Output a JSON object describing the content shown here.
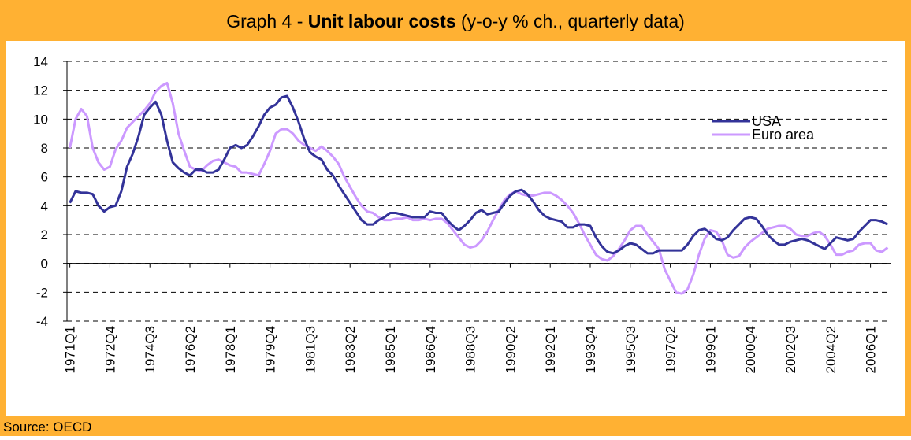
{
  "chart_data": {
    "type": "line",
    "title": {
      "lead": "Graph 4 - ",
      "bold": "Unit labour costs",
      "rest": " (y-o-y % ch., quarterly data)"
    },
    "source": "Source: OECD",
    "categories": [
      "1971Q1",
      null,
      null,
      null,
      null,
      null,
      null,
      "1972Q4",
      null,
      null,
      null,
      null,
      null,
      null,
      "1974Q3",
      null,
      null,
      null,
      null,
      null,
      null,
      "1976Q2",
      null,
      null,
      null,
      null,
      null,
      null,
      "1978Q1",
      null,
      null,
      null,
      null,
      null,
      null,
      "1979Q4",
      null,
      null,
      null,
      null,
      null,
      null,
      "1981Q3",
      null,
      null,
      null,
      null,
      null,
      null,
      "1983Q2",
      null,
      null,
      null,
      null,
      null,
      null,
      "1985Q1",
      null,
      null,
      null,
      null,
      null,
      null,
      "1986Q4",
      null,
      null,
      null,
      null,
      null,
      null,
      "1988Q3",
      null,
      null,
      null,
      null,
      null,
      null,
      "1990Q2",
      null,
      null,
      null,
      null,
      null,
      null,
      "1992Q1",
      null,
      null,
      null,
      null,
      null,
      null,
      "1993Q4",
      null,
      null,
      null,
      null,
      null,
      null,
      "1995Q3",
      null,
      null,
      null,
      null,
      null,
      null,
      "1997Q2",
      null,
      null,
      null,
      null,
      null,
      null,
      "1999Q1",
      null,
      null,
      null,
      null,
      null,
      null,
      "2000Q4",
      null,
      null,
      null,
      null,
      null,
      null,
      "2002Q3",
      null,
      null,
      null,
      null,
      null,
      null,
      "2004Q2",
      null,
      null,
      null,
      null,
      null,
      null,
      "2006Q1",
      null,
      null,
      null
    ],
    "series": [
      {
        "name": "USA",
        "color": "#333399",
        "values": [
          4.2,
          5.0,
          4.9,
          4.9,
          4.8,
          4.0,
          3.6,
          3.9,
          4.0,
          5.0,
          6.7,
          7.6,
          8.8,
          10.3,
          10.8,
          11.2,
          10.3,
          8.5,
          7.0,
          6.6,
          6.3,
          6.1,
          6.5,
          6.5,
          6.3,
          6.3,
          6.5,
          7.2,
          8.0,
          8.2,
          8.0,
          8.2,
          8.8,
          9.5,
          10.3,
          10.8,
          11.0,
          11.5,
          11.6,
          10.8,
          9.8,
          8.6,
          7.7,
          7.4,
          7.2,
          6.5,
          6.1,
          5.4,
          4.8,
          4.2,
          3.6,
          3.0,
          2.7,
          2.7,
          3.0,
          3.2,
          3.5,
          3.5,
          3.4,
          3.3,
          3.2,
          3.2,
          3.2,
          3.6,
          3.5,
          3.5,
          3.0,
          2.6,
          2.3,
          2.6,
          3.0,
          3.5,
          3.7,
          3.4,
          3.5,
          3.6,
          4.2,
          4.7,
          5.0,
          5.1,
          4.8,
          4.3,
          3.7,
          3.3,
          3.1,
          3.0,
          2.9,
          2.5,
          2.5,
          2.7,
          2.7,
          2.6,
          1.8,
          1.2,
          0.8,
          0.7,
          0.9,
          1.2,
          1.4,
          1.3,
          1.0,
          0.7,
          0.7,
          0.9,
          0.9,
          0.9,
          0.9,
          0.9,
          1.3,
          1.9,
          2.3,
          2.4,
          2.1,
          1.7,
          1.6,
          1.8,
          2.3,
          2.7,
          3.1,
          3.2,
          3.1,
          2.6,
          2.0,
          1.6,
          1.3,
          1.3,
          1.5,
          1.6,
          1.7,
          1.6,
          1.4,
          1.2,
          1.0,
          1.4,
          1.8,
          1.7,
          1.6,
          1.7,
          2.2,
          2.6,
          3.0,
          3.0,
          2.9,
          2.7
        ]
      },
      {
        "name": "Euro area",
        "color": "#cc99ff",
        "values": [
          8.0,
          10.0,
          10.7,
          10.2,
          8.0,
          7.0,
          6.5,
          6.7,
          7.9,
          8.5,
          9.4,
          9.8,
          10.2,
          10.6,
          11.1,
          11.9,
          12.3,
          12.5,
          11.1,
          9.0,
          7.8,
          6.7,
          6.5,
          6.4,
          6.8,
          7.1,
          7.2,
          7.0,
          6.8,
          6.7,
          6.3,
          6.3,
          6.2,
          6.1,
          6.9,
          7.8,
          9.0,
          9.3,
          9.3,
          9.0,
          8.5,
          8.2,
          8.0,
          7.8,
          8.1,
          7.8,
          7.4,
          6.9,
          6.0,
          5.3,
          4.6,
          4.0,
          3.6,
          3.5,
          3.2,
          3.0,
          3.0,
          3.1,
          3.1,
          3.2,
          3.0,
          3.0,
          3.1,
          3.0,
          3.1,
          3.1,
          2.8,
          2.3,
          1.8,
          1.3,
          1.1,
          1.2,
          1.6,
          2.2,
          3.0,
          3.7,
          4.4,
          4.8,
          5.0,
          4.8,
          4.7,
          4.7,
          4.8,
          4.9,
          4.9,
          4.7,
          4.4,
          4.0,
          3.5,
          2.8,
          2.0,
          1.3,
          0.6,
          0.3,
          0.2,
          0.5,
          1.0,
          1.6,
          2.3,
          2.6,
          2.6,
          2.0,
          1.5,
          1.0,
          -0.4,
          -1.2,
          -2.0,
          -2.1,
          -1.8,
          -0.8,
          0.6,
          1.7,
          2.3,
          2.2,
          1.6,
          0.6,
          0.4,
          0.5,
          1.1,
          1.5,
          1.8,
          2.1,
          2.4,
          2.5,
          2.6,
          2.6,
          2.4,
          2.0,
          1.9,
          1.9,
          2.1,
          2.2,
          1.9,
          1.3,
          0.6,
          0.6,
          0.8,
          0.9,
          1.3,
          1.4,
          1.4,
          0.9,
          0.8,
          1.1
        ]
      }
    ],
    "ylim": [
      -4,
      14
    ],
    "yticks": [
      -4,
      -2,
      0,
      2,
      4,
      6,
      8,
      10,
      12,
      14
    ],
    "grid": true,
    "legend": "upper right"
  }
}
